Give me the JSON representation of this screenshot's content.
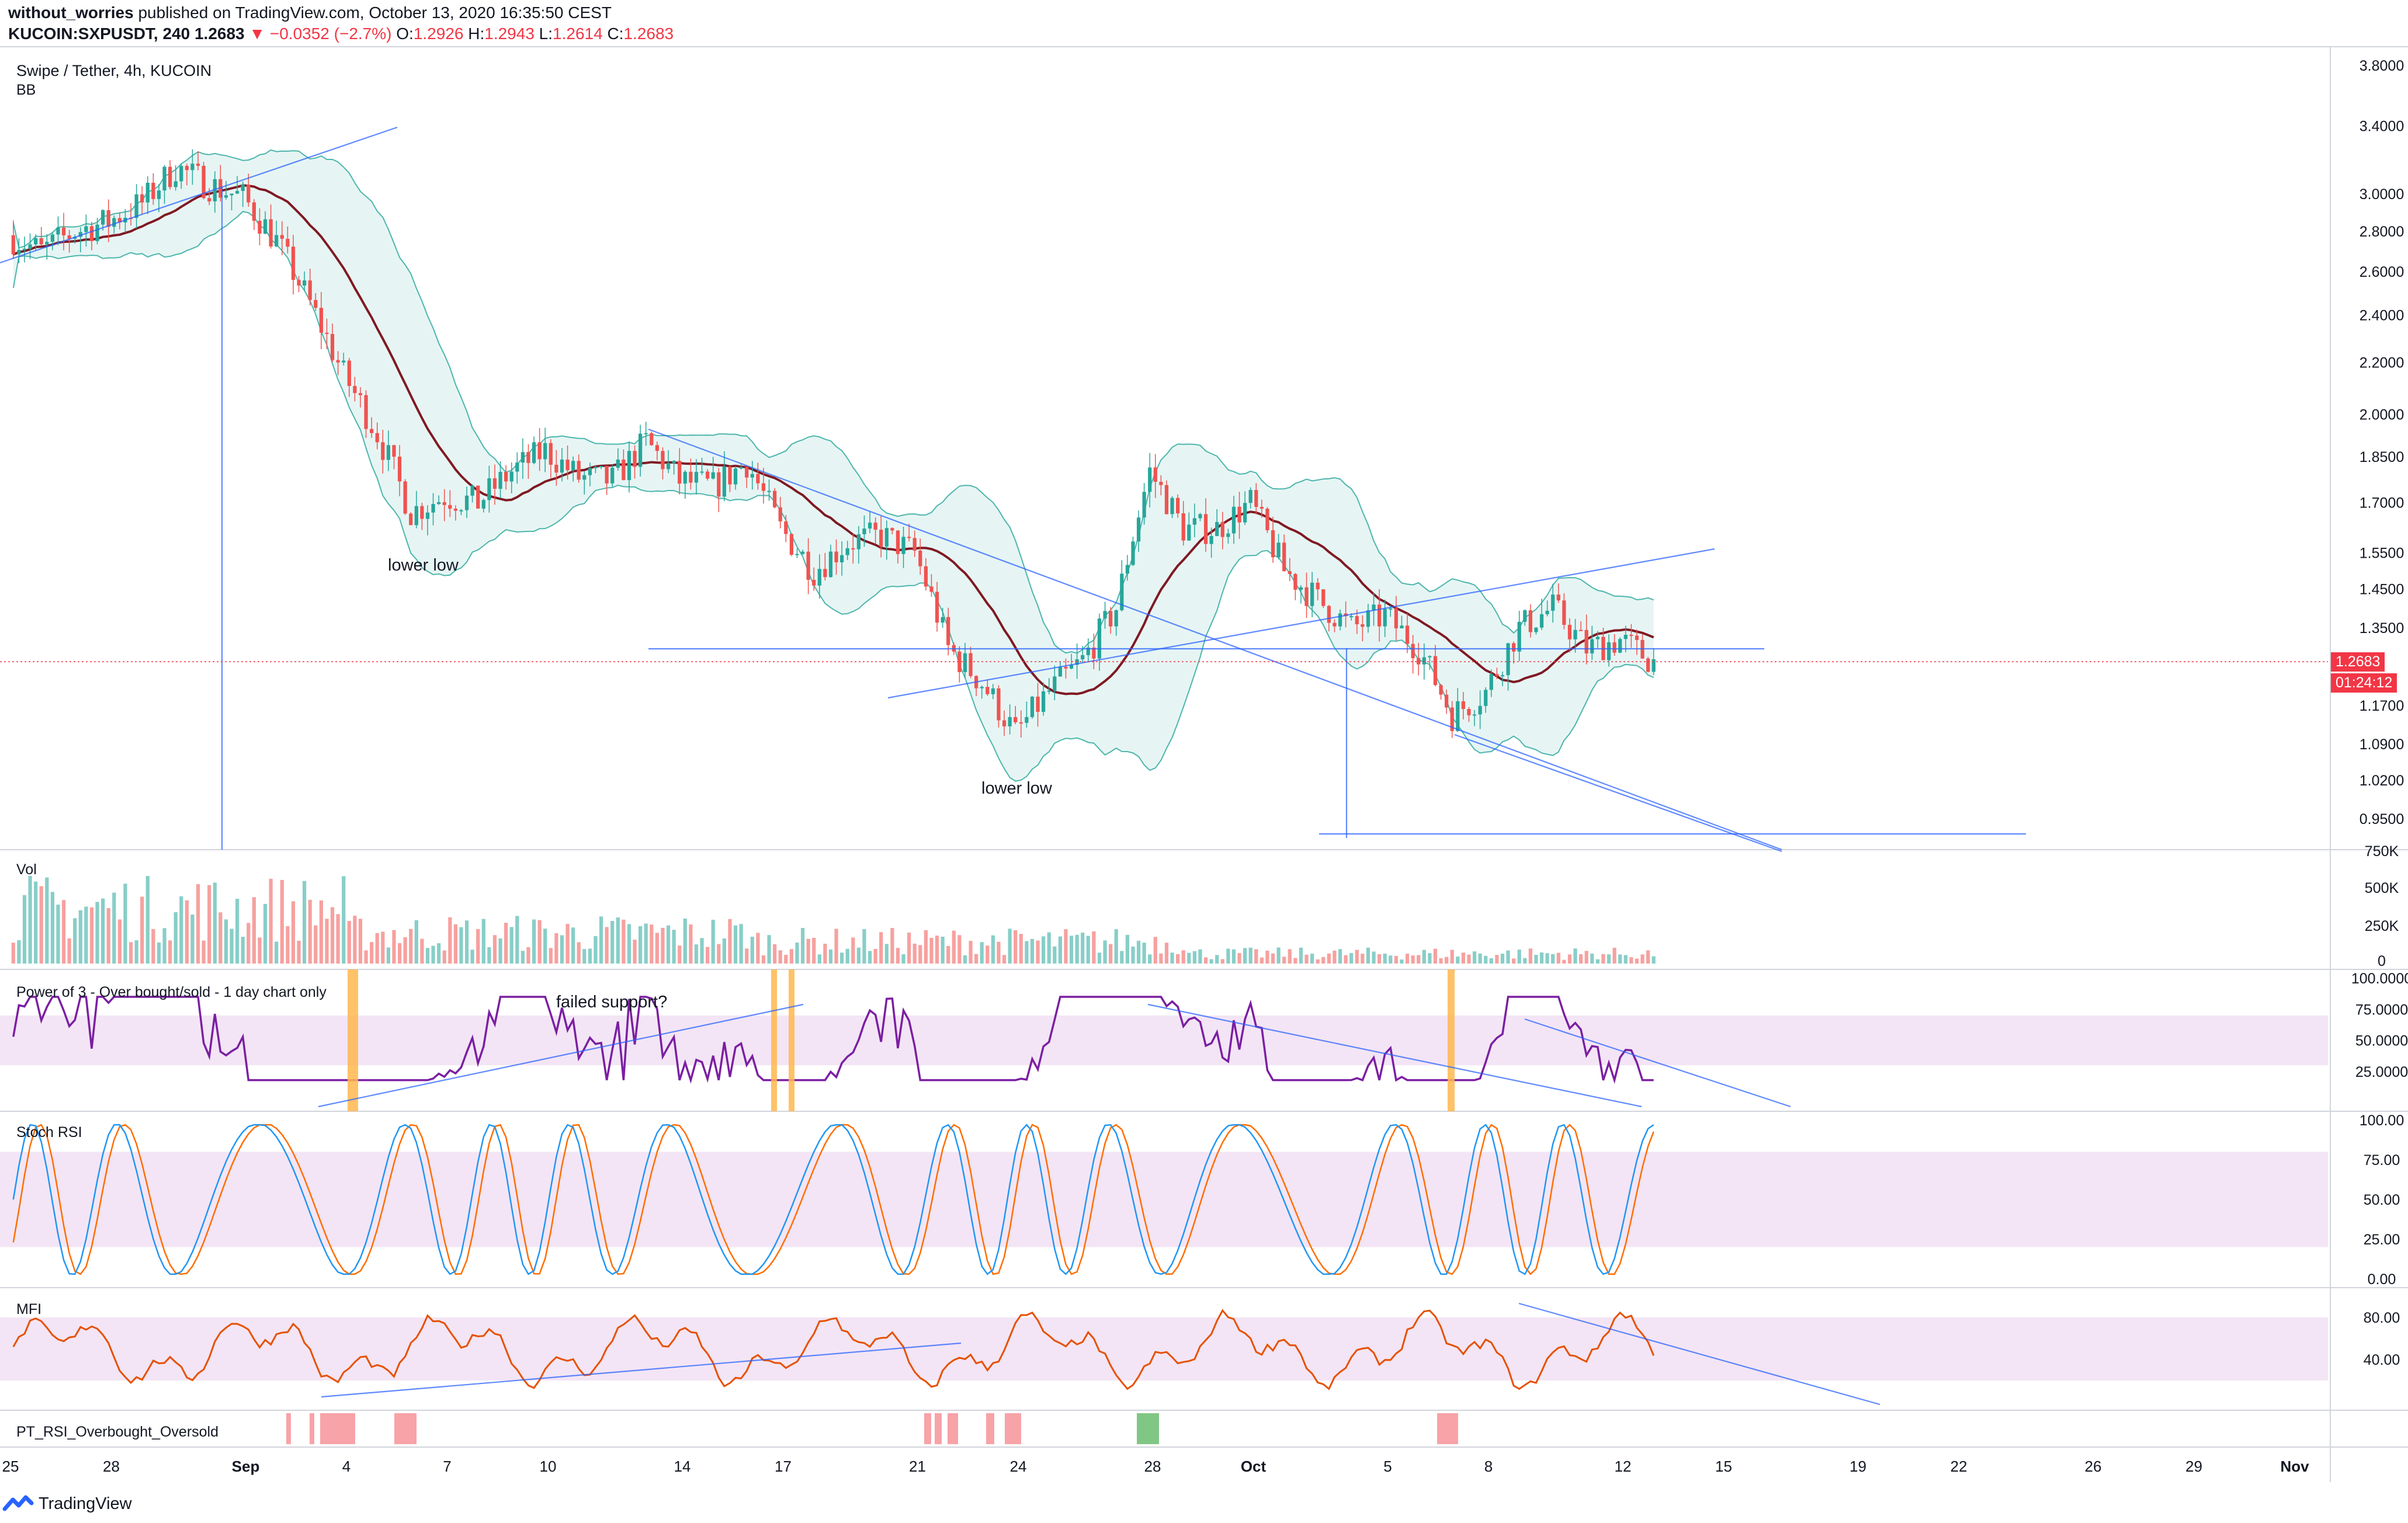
{
  "header": {
    "author": "without_worries",
    "published": "published on TradingView.com, October 13, 2020 16:35:50 CEST",
    "symbol": "KUCOIN:SXPUSDT, 240",
    "last": "1.2683",
    "change": "▼ −0.0352 (−2.7%)",
    "o_label": "O:",
    "o": "1.2926",
    "h_label": "H:",
    "h": "1.2943",
    "l_label": "L:",
    "l": "1.2614",
    "c_label": "C:",
    "c": "1.2683"
  },
  "main_pane": {
    "title": "Swipe / Tether, 4h, KUCOIN",
    "indicator": "BB",
    "price_badge": "1.2683",
    "countdown_badge": "01:24:12",
    "annotations": [
      "lower low",
      "lower low"
    ]
  },
  "volume_pane": {
    "title": "Vol"
  },
  "p3_pane": {
    "title": "Power of 3 - Over bought/sold - 1 day chart only",
    "annotation": "failed support?"
  },
  "stoch_pane": {
    "title": "Stoch RSI"
  },
  "mfi_pane": {
    "title": "MFI"
  },
  "pt_pane": {
    "title": "PT_RSI_Overbought_Oversold"
  },
  "logo": {
    "text": "TradingView",
    "icon": "tradingview-logo-icon"
  },
  "colors": {
    "up": "#26a69a",
    "down": "#ef5350",
    "bb_mid": "#801922",
    "bb_fill": "#e0f2f1",
    "trendline": "#2962ff",
    "purple": "#7b1fa2",
    "stoch_k": "#2196f3",
    "stoch_d": "#ff6d00",
    "mfi": "#e65100",
    "band": "#f3e5f5",
    "orange_bar": "#ffb74d",
    "pt_red": "#f7a3a8",
    "pt_green": "#81c784"
  },
  "chart_data": [
    {
      "type": "candlestick",
      "title": "Swipe / Tether, 4h, KUCOIN",
      "y_ticks": [
        "3.8000",
        "3.4000",
        "3.0000",
        "2.8000",
        "2.6000",
        "2.4000",
        "2.2000",
        "2.0000",
        "1.8500",
        "1.7000",
        "1.5500",
        "1.4500",
        "1.3500",
        "1.2683",
        "1.1700",
        "1.0900",
        "1.0200",
        "0.9500"
      ],
      "log_scale": true,
      "x_ticks": [
        "25",
        "28",
        "Sep",
        "4",
        "7",
        "10",
        "14",
        "17",
        "21",
        "24",
        "28",
        "Oct",
        "5",
        "8",
        "12",
        "15",
        "19",
        "22",
        "26",
        "29",
        "Nov"
      ],
      "close_anchors": [
        [
          "Aug 25",
          2.78
        ],
        [
          "Aug 26",
          2.7
        ],
        [
          "Aug 27",
          2.8
        ],
        [
          "Aug 28",
          2.85
        ],
        [
          "Aug 29",
          2.95
        ],
        [
          "Aug 30",
          3.15
        ],
        [
          "Aug 31",
          3.05
        ],
        [
          "Sep 1",
          2.98
        ],
        [
          "Sep 2",
          2.75
        ],
        [
          "Sep 3",
          2.45
        ],
        [
          "Sep 4",
          2.15
        ],
        [
          "Sep 5",
          1.93
        ],
        [
          "Sep 6",
          1.67
        ],
        [
          "Sep 7",
          1.72
        ],
        [
          "Sep 8",
          1.7
        ],
        [
          "Sep 9",
          1.8
        ],
        [
          "Sep 10",
          1.87
        ],
        [
          "Sep 11",
          1.78
        ],
        [
          "Sep 12",
          1.77
        ],
        [
          "Sep 13",
          1.9
        ],
        [
          "Sep 14",
          1.77
        ],
        [
          "Sep 15",
          1.75
        ],
        [
          "Sep 16",
          1.83
        ],
        [
          "Sep 17",
          1.62
        ],
        [
          "Sep 18",
          1.5
        ],
        [
          "Sep 19",
          1.58
        ],
        [
          "Sep 20",
          1.6
        ],
        [
          "Sep 21",
          1.55
        ],
        [
          "Sep 22",
          1.3
        ],
        [
          "Sep 23",
          1.22
        ],
        [
          "Sep 24",
          1.11
        ],
        [
          "Sep 25",
          1.2
        ],
        [
          "Sep 26",
          1.27
        ],
        [
          "Sep 27",
          1.4
        ],
        [
          "Sep 28",
          1.8
        ],
        [
          "Sep 29",
          1.62
        ],
        [
          "Sep 30",
          1.62
        ],
        [
          "Oct 1",
          1.7
        ],
        [
          "Oct 2",
          1.5
        ],
        [
          "Oct 3",
          1.42
        ],
        [
          "Oct 4",
          1.35
        ],
        [
          "Oct 5",
          1.38
        ],
        [
          "Oct 6",
          1.3
        ],
        [
          "Oct 7",
          1.15
        ],
        [
          "Oct 8",
          1.2
        ],
        [
          "Oct 9",
          1.35
        ],
        [
          "Oct 10",
          1.4
        ],
        [
          "Oct 11",
          1.3
        ],
        [
          "Oct 12",
          1.32
        ],
        [
          "Oct 13",
          1.2683
        ]
      ],
      "annotations": [
        [
          "Sep 6",
          "lower low"
        ],
        [
          "Sep 24",
          "lower low"
        ]
      ]
    },
    {
      "type": "bar",
      "title": "Vol",
      "y_ticks": [
        "750K",
        "500K",
        "250K",
        "0"
      ]
    },
    {
      "type": "line",
      "title": "Power of 3 - Over bought/sold - 1 day chart only",
      "y_ticks": [
        "100.0000",
        "75.0000",
        "50.0000",
        "25.0000"
      ],
      "ylim": [
        0,
        100
      ],
      "band": [
        30,
        70
      ]
    },
    {
      "type": "line",
      "title": "Stoch RSI",
      "y_ticks": [
        "100.00",
        "75.00",
        "50.00",
        "25.00",
        "0.00"
      ],
      "ylim": [
        0,
        100
      ],
      "band": [
        20,
        80
      ],
      "series": [
        {
          "values": []
        },
        {
          "values": []
        }
      ]
    },
    {
      "type": "line",
      "title": "MFI",
      "y_ticks": [
        "80.00",
        "40.00"
      ],
      "band": [
        20,
        80
      ]
    },
    {
      "type": "bar",
      "title": "PT_RSI_Overbought_Oversold"
    }
  ]
}
